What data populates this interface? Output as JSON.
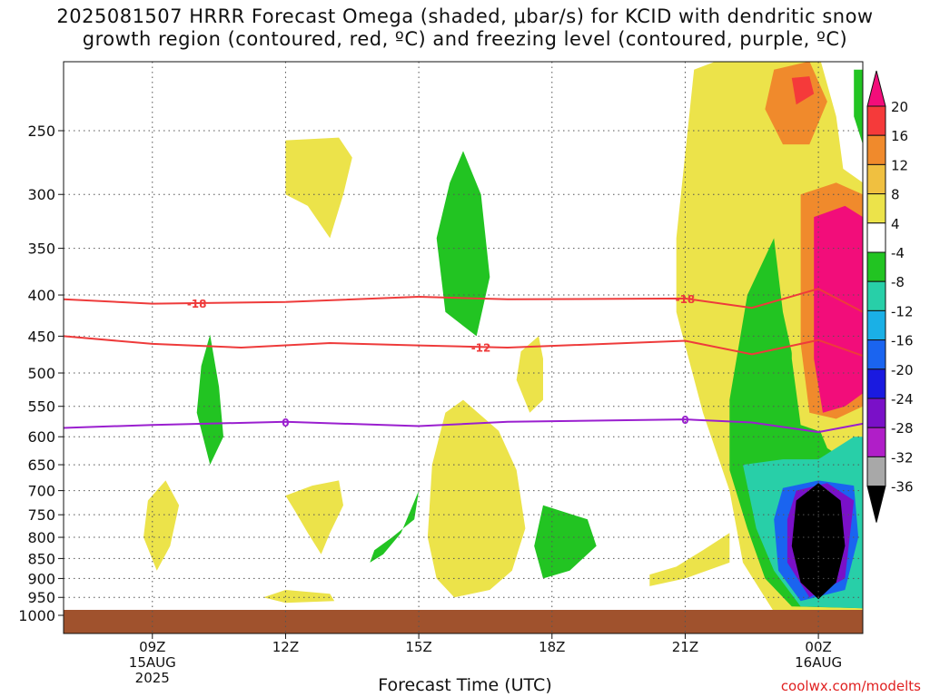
{
  "title_lines": [
    "2025081507 HRRR Forecast Omega (shaded, μbar/s) for KCID with dendritic snow",
    "growth region (contoured, red, ºC) and freezing level (contoured, purple, ºC)"
  ],
  "x_axis_label": "Forecast Time (UTC)",
  "credit": "coolwx.com/modelts",
  "chart_data": {
    "type": "heatmap",
    "y_axis": {
      "scale": "pressure (log)",
      "ticks": [
        250,
        300,
        350,
        400,
        450,
        500,
        550,
        600,
        650,
        700,
        750,
        800,
        850,
        900,
        950,
        1000
      ],
      "range": [
        1000,
        200
      ]
    },
    "x_axis": {
      "ticks": [
        {
          "label": "09Z",
          "sub": [
            "15AUG",
            "2025"
          ],
          "hour": 9
        },
        {
          "label": "12Z",
          "sub": [],
          "hour": 12
        },
        {
          "label": "15Z",
          "sub": [],
          "hour": 15
        },
        {
          "label": "18Z",
          "sub": [],
          "hour": 18
        },
        {
          "label": "21Z",
          "sub": [],
          "hour": 21
        },
        {
          "label": "00Z",
          "sub": [
            "16AUG"
          ],
          "hour": 24
        }
      ],
      "range_hours": [
        7,
        25
      ]
    },
    "colorbar": {
      "labels": [
        "20",
        "16",
        "12",
        "8",
        "4",
        "-4",
        "-8",
        "-12",
        "-16",
        "-20",
        "-24",
        "-28",
        "-32",
        "-36"
      ],
      "colors": [
        "#f20d7a",
        "#f53a3a",
        "#f08a2c",
        "#f0c040",
        "#ece34a",
        "#ffffff",
        "#22c422",
        "#28cfa8",
        "#1ab0e6",
        "#1a64f0",
        "#1a1ae0",
        "#7a10c8",
        "#b01ec8",
        "#a8a8a8",
        "#000000"
      ]
    },
    "contours": [
      {
        "name": "-18",
        "color": "#ee3b3b",
        "points": [
          [
            7.0,
            405
          ],
          [
            9.0,
            410
          ],
          [
            12.0,
            408
          ],
          [
            15.0,
            402
          ],
          [
            17.0,
            405
          ],
          [
            21.0,
            404
          ],
          [
            22.5,
            415
          ],
          [
            24.0,
            393
          ],
          [
            25.0,
            420
          ]
        ]
      },
      {
        "name": "-12",
        "color": "#ee3b3b",
        "points": [
          [
            7.0,
            450
          ],
          [
            9.0,
            460
          ],
          [
            11.0,
            465
          ],
          [
            13.0,
            459
          ],
          [
            15.0,
            462
          ],
          [
            17.0,
            465
          ],
          [
            21.0,
            456
          ],
          [
            22.5,
            474
          ],
          [
            24.0,
            455
          ],
          [
            25.0,
            476
          ]
        ]
      },
      {
        "name": "0",
        "color": "#9a1fcf",
        "points": [
          [
            7.0,
            585
          ],
          [
            9.0,
            580
          ],
          [
            12.0,
            575
          ],
          [
            15.0,
            582
          ],
          [
            17.0,
            575
          ],
          [
            21.0,
            571
          ],
          [
            22.5,
            576
          ],
          [
            24.0,
            592
          ],
          [
            25.0,
            578
          ]
        ]
      }
    ],
    "regions": [
      {
        "level": "4",
        "color": "#ece34a",
        "points": [
          [
            12.0,
            257
          ],
          [
            13.2,
            255
          ],
          [
            13.5,
            270
          ],
          [
            13.3,
            300
          ],
          [
            13.0,
            340
          ],
          [
            12.5,
            310
          ],
          [
            12.0,
            300
          ]
        ]
      },
      {
        "level": "4",
        "color": "#ece34a",
        "points": [
          [
            12.0,
            710
          ],
          [
            12.6,
            690
          ],
          [
            13.2,
            680
          ],
          [
            13.3,
            730
          ],
          [
            13.0,
            790
          ],
          [
            12.8,
            840
          ],
          [
            12.5,
            790
          ],
          [
            12.2,
            740
          ]
        ]
      },
      {
        "level": "4",
        "color": "#ece34a",
        "points": [
          [
            11.5,
            950
          ],
          [
            12.0,
            930
          ],
          [
            13.0,
            940
          ],
          [
            13.1,
            960
          ],
          [
            12.0,
            965
          ]
        ]
      },
      {
        "level": "4",
        "color": "#ece34a",
        "points": [
          [
            9.3,
            680
          ],
          [
            9.6,
            730
          ],
          [
            9.4,
            820
          ],
          [
            9.1,
            880
          ],
          [
            8.8,
            800
          ],
          [
            8.9,
            720
          ]
        ]
      },
      {
        "level": "-8",
        "color": "#22c422",
        "points": [
          [
            10.3,
            448
          ],
          [
            10.5,
            520
          ],
          [
            10.6,
            600
          ],
          [
            10.3,
            650
          ],
          [
            10.0,
            560
          ],
          [
            10.1,
            490
          ]
        ]
      },
      {
        "level": "-8",
        "color": "#22c422",
        "points": [
          [
            16.0,
            265
          ],
          [
            16.4,
            300
          ],
          [
            16.6,
            380
          ],
          [
            16.3,
            450
          ],
          [
            15.6,
            420
          ],
          [
            15.4,
            340
          ],
          [
            15.7,
            290
          ]
        ]
      },
      {
        "level": "4",
        "color": "#ece34a",
        "points": [
          [
            17.7,
            450
          ],
          [
            17.8,
            480
          ],
          [
            17.8,
            540
          ],
          [
            17.5,
            560
          ],
          [
            17.2,
            510
          ],
          [
            17.3,
            470
          ]
        ]
      },
      {
        "level": "4",
        "color": "#ece34a",
        "points": [
          [
            16.0,
            540
          ],
          [
            16.8,
            590
          ],
          [
            17.2,
            660
          ],
          [
            17.4,
            780
          ],
          [
            17.1,
            880
          ],
          [
            16.6,
            930
          ],
          [
            15.8,
            950
          ],
          [
            15.4,
            900
          ],
          [
            15.2,
            800
          ],
          [
            15.3,
            650
          ],
          [
            15.6,
            560
          ]
        ]
      },
      {
        "level": "-8",
        "color": "#22c422",
        "points": [
          [
            17.8,
            730
          ],
          [
            18.8,
            760
          ],
          [
            19.0,
            820
          ],
          [
            18.4,
            880
          ],
          [
            17.8,
            900
          ],
          [
            17.6,
            820
          ]
        ]
      },
      {
        "level": "-8",
        "color": "#22c422",
        "points": [
          [
            14.0,
            830
          ],
          [
            14.4,
            800
          ],
          [
            14.9,
            760
          ],
          [
            15.0,
            700
          ],
          [
            14.6,
            790
          ],
          [
            14.2,
            840
          ],
          [
            13.9,
            860
          ]
        ]
      },
      {
        "level": "4",
        "color": "#ece34a",
        "points": [
          [
            20.2,
            890
          ],
          [
            20.8,
            870
          ],
          [
            21.4,
            830
          ],
          [
            22.0,
            790
          ],
          [
            22.0,
            860
          ],
          [
            21.0,
            900
          ],
          [
            20.2,
            920
          ]
        ]
      },
      {
        "level": "4",
        "color": "#ece34a",
        "points": [
          [
            21.2,
            210
          ],
          [
            22.2,
            200
          ],
          [
            24.0,
            200
          ],
          [
            24.4,
            240
          ],
          [
            24.6,
            290
          ],
          [
            24.9,
            300
          ],
          [
            25.0,
            330
          ],
          [
            25.0,
            1000
          ],
          [
            23.8,
            990
          ],
          [
            23.0,
            990
          ],
          [
            22.3,
            860
          ],
          [
            22.0,
            700
          ],
          [
            21.4,
            560
          ],
          [
            20.8,
            420
          ],
          [
            20.8,
            340
          ]
        ]
      },
      {
        "level": "12",
        "color": "#f08a2c",
        "points": [
          [
            23.0,
            210
          ],
          [
            23.8,
            205
          ],
          [
            24.2,
            230
          ],
          [
            23.8,
            260
          ],
          [
            23.2,
            260
          ],
          [
            22.8,
            235
          ]
        ]
      },
      {
        "level": "16",
        "color": "#f53a3a",
        "points": [
          [
            23.4,
            215
          ],
          [
            23.8,
            214
          ],
          [
            23.9,
            225
          ],
          [
            23.5,
            232
          ]
        ]
      },
      {
        "level": "-8",
        "color": "#22c422",
        "points": [
          [
            22.4,
            400
          ],
          [
            23.0,
            340
          ],
          [
            23.2,
            420
          ],
          [
            23.5,
            500
          ],
          [
            24.2,
            620
          ],
          [
            24.6,
            640
          ],
          [
            25.0,
            640
          ],
          [
            25.0,
            980
          ],
          [
            23.4,
            975
          ],
          [
            22.8,
            900
          ],
          [
            22.4,
            780
          ],
          [
            22.0,
            660
          ],
          [
            22.0,
            540
          ]
        ]
      },
      {
        "level": "-12",
        "color": "#28cfa8",
        "points": [
          [
            22.3,
            650
          ],
          [
            23.2,
            640
          ],
          [
            24.0,
            640
          ],
          [
            24.8,
            600
          ],
          [
            25.0,
            600
          ],
          [
            25.0,
            980
          ],
          [
            23.6,
            975
          ],
          [
            23.0,
            880
          ],
          [
            22.6,
            780
          ]
        ]
      },
      {
        "level": "-20",
        "color": "#1a64f0",
        "points": [
          [
            23.2,
            695
          ],
          [
            24.0,
            680
          ],
          [
            24.8,
            690
          ],
          [
            24.9,
            800
          ],
          [
            24.6,
            930
          ],
          [
            23.6,
            960
          ],
          [
            23.1,
            880
          ],
          [
            23.0,
            760
          ]
        ]
      },
      {
        "level": "-28",
        "color": "#7a10c8",
        "points": [
          [
            23.5,
            700
          ],
          [
            24.2,
            685
          ],
          [
            24.8,
            720
          ],
          [
            24.6,
            900
          ],
          [
            23.8,
            950
          ],
          [
            23.3,
            860
          ],
          [
            23.3,
            760
          ]
        ]
      },
      {
        "level": "-36",
        "color": "#000000",
        "points": [
          [
            24.0,
            685
          ],
          [
            24.5,
            720
          ],
          [
            24.6,
            820
          ],
          [
            24.4,
            910
          ],
          [
            24.0,
            955
          ],
          [
            23.6,
            910
          ],
          [
            23.4,
            820
          ],
          [
            23.5,
            720
          ]
        ]
      },
      {
        "level": "4",
        "color": "#ece34a",
        "points": [
          [
            23.5,
            270
          ],
          [
            24.2,
            270
          ],
          [
            25.0,
            290
          ],
          [
            25.0,
            570
          ],
          [
            24.7,
            560
          ],
          [
            24.0,
            590
          ],
          [
            23.6,
            580
          ],
          [
            23.4,
            480
          ],
          [
            23.4,
            350
          ]
        ]
      },
      {
        "level": "12",
        "color": "#f08a2c",
        "points": [
          [
            23.6,
            300
          ],
          [
            24.4,
            290
          ],
          [
            25.0,
            300
          ],
          [
            25.0,
            550
          ],
          [
            24.4,
            570
          ],
          [
            23.8,
            560
          ],
          [
            23.6,
            460
          ]
        ]
      },
      {
        "level": "20",
        "color": "#f20d7a",
        "points": [
          [
            23.9,
            320
          ],
          [
            24.6,
            310
          ],
          [
            25.0,
            320
          ],
          [
            25.0,
            530
          ],
          [
            24.6,
            550
          ],
          [
            24.1,
            560
          ],
          [
            23.9,
            480
          ]
        ]
      },
      {
        "level": "-8",
        "color": "#22c422",
        "points": [
          [
            24.8,
            210
          ],
          [
            25.0,
            210
          ],
          [
            25.0,
            260
          ],
          [
            24.8,
            240
          ]
        ]
      }
    ]
  }
}
